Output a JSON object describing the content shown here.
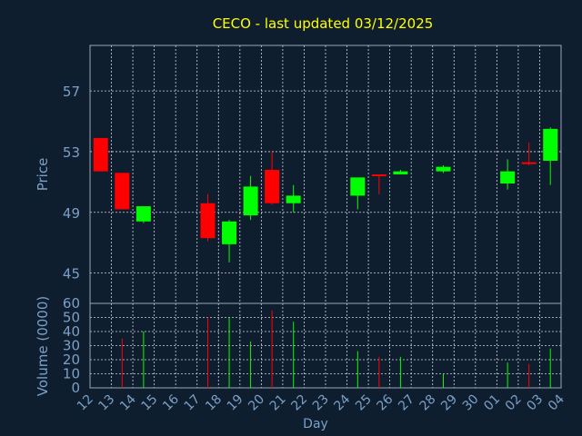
{
  "colors": {
    "background": "#0f1e2e",
    "title": "#ffff00",
    "axis_text": "#7aa0c8",
    "frame": "#9aa7b5",
    "grid": "#cfd6de",
    "up": "#00ff00",
    "down": "#ff0000"
  },
  "chart_data": {
    "type": "candlestick",
    "title": "CECO - last updated 03/12/2025",
    "xlabel": "Day",
    "grid": true,
    "x_ticks": [
      "12",
      "13",
      "14",
      "15",
      "16",
      "17",
      "18",
      "19",
      "20",
      "21",
      "22",
      "23",
      "24",
      "25",
      "26",
      "27",
      "28",
      "29",
      "30",
      "01",
      "02",
      "03",
      "04"
    ],
    "price_panel": {
      "ylabel": "Price",
      "ylim": [
        43,
        60
      ],
      "yticks": [
        "45",
        "49",
        "53",
        "57"
      ],
      "ytick_values": [
        45,
        49,
        53,
        57
      ]
    },
    "volume_panel": {
      "ylabel": "Volume (0000)",
      "ylim": [
        0,
        60
      ],
      "yticks": [
        "0",
        "10",
        "20",
        "30",
        "40",
        "50",
        "60"
      ],
      "ytick_values": [
        0,
        10,
        20,
        30,
        40,
        50,
        60
      ]
    },
    "candles": [
      {
        "day": "12",
        "open": 53.9,
        "high": 53.9,
        "low": 51.7,
        "close": 51.7,
        "volume": 0
      },
      {
        "day": "13",
        "open": 51.6,
        "high": 51.6,
        "low": 49.2,
        "close": 49.2,
        "volume": 35
      },
      {
        "day": "14",
        "open": 48.4,
        "high": 49.4,
        "low": 48.3,
        "close": 49.4,
        "volume": 40
      },
      {
        "day": "17",
        "open": 49.6,
        "high": 50.2,
        "low": 47.1,
        "close": 47.3,
        "volume": 50
      },
      {
        "day": "18",
        "open": 46.9,
        "high": 48.5,
        "low": 45.7,
        "close": 48.4,
        "volume": 50
      },
      {
        "day": "19",
        "open": 48.8,
        "high": 51.4,
        "low": 48.5,
        "close": 50.7,
        "volume": 33
      },
      {
        "day": "20",
        "open": 51.8,
        "high": 53.0,
        "low": 49.5,
        "close": 49.6,
        "volume": 55
      },
      {
        "day": "21",
        "open": 49.6,
        "high": 50.8,
        "low": 49.0,
        "close": 50.1,
        "volume": 47
      },
      {
        "day": "24",
        "open": 50.1,
        "high": 51.3,
        "low": 49.2,
        "close": 51.3,
        "volume": 26
      },
      {
        "day": "25",
        "open": 51.5,
        "high": 51.5,
        "low": 50.2,
        "close": 51.4,
        "volume": 22
      },
      {
        "day": "26",
        "open": 51.5,
        "high": 51.8,
        "low": 51.5,
        "close": 51.7,
        "volume": 22
      },
      {
        "day": "28",
        "open": 51.7,
        "high": 52.1,
        "low": 51.6,
        "close": 52.0,
        "volume": 10
      },
      {
        "day": "01",
        "open": 50.9,
        "high": 52.5,
        "low": 50.5,
        "close": 51.7,
        "volume": 18
      },
      {
        "day": "02",
        "open": 52.3,
        "high": 53.6,
        "low": 52.1,
        "close": 52.2,
        "volume": 17
      },
      {
        "day": "03",
        "open": 52.4,
        "high": 54.6,
        "low": 50.8,
        "close": 54.5,
        "volume": 28
      }
    ]
  }
}
